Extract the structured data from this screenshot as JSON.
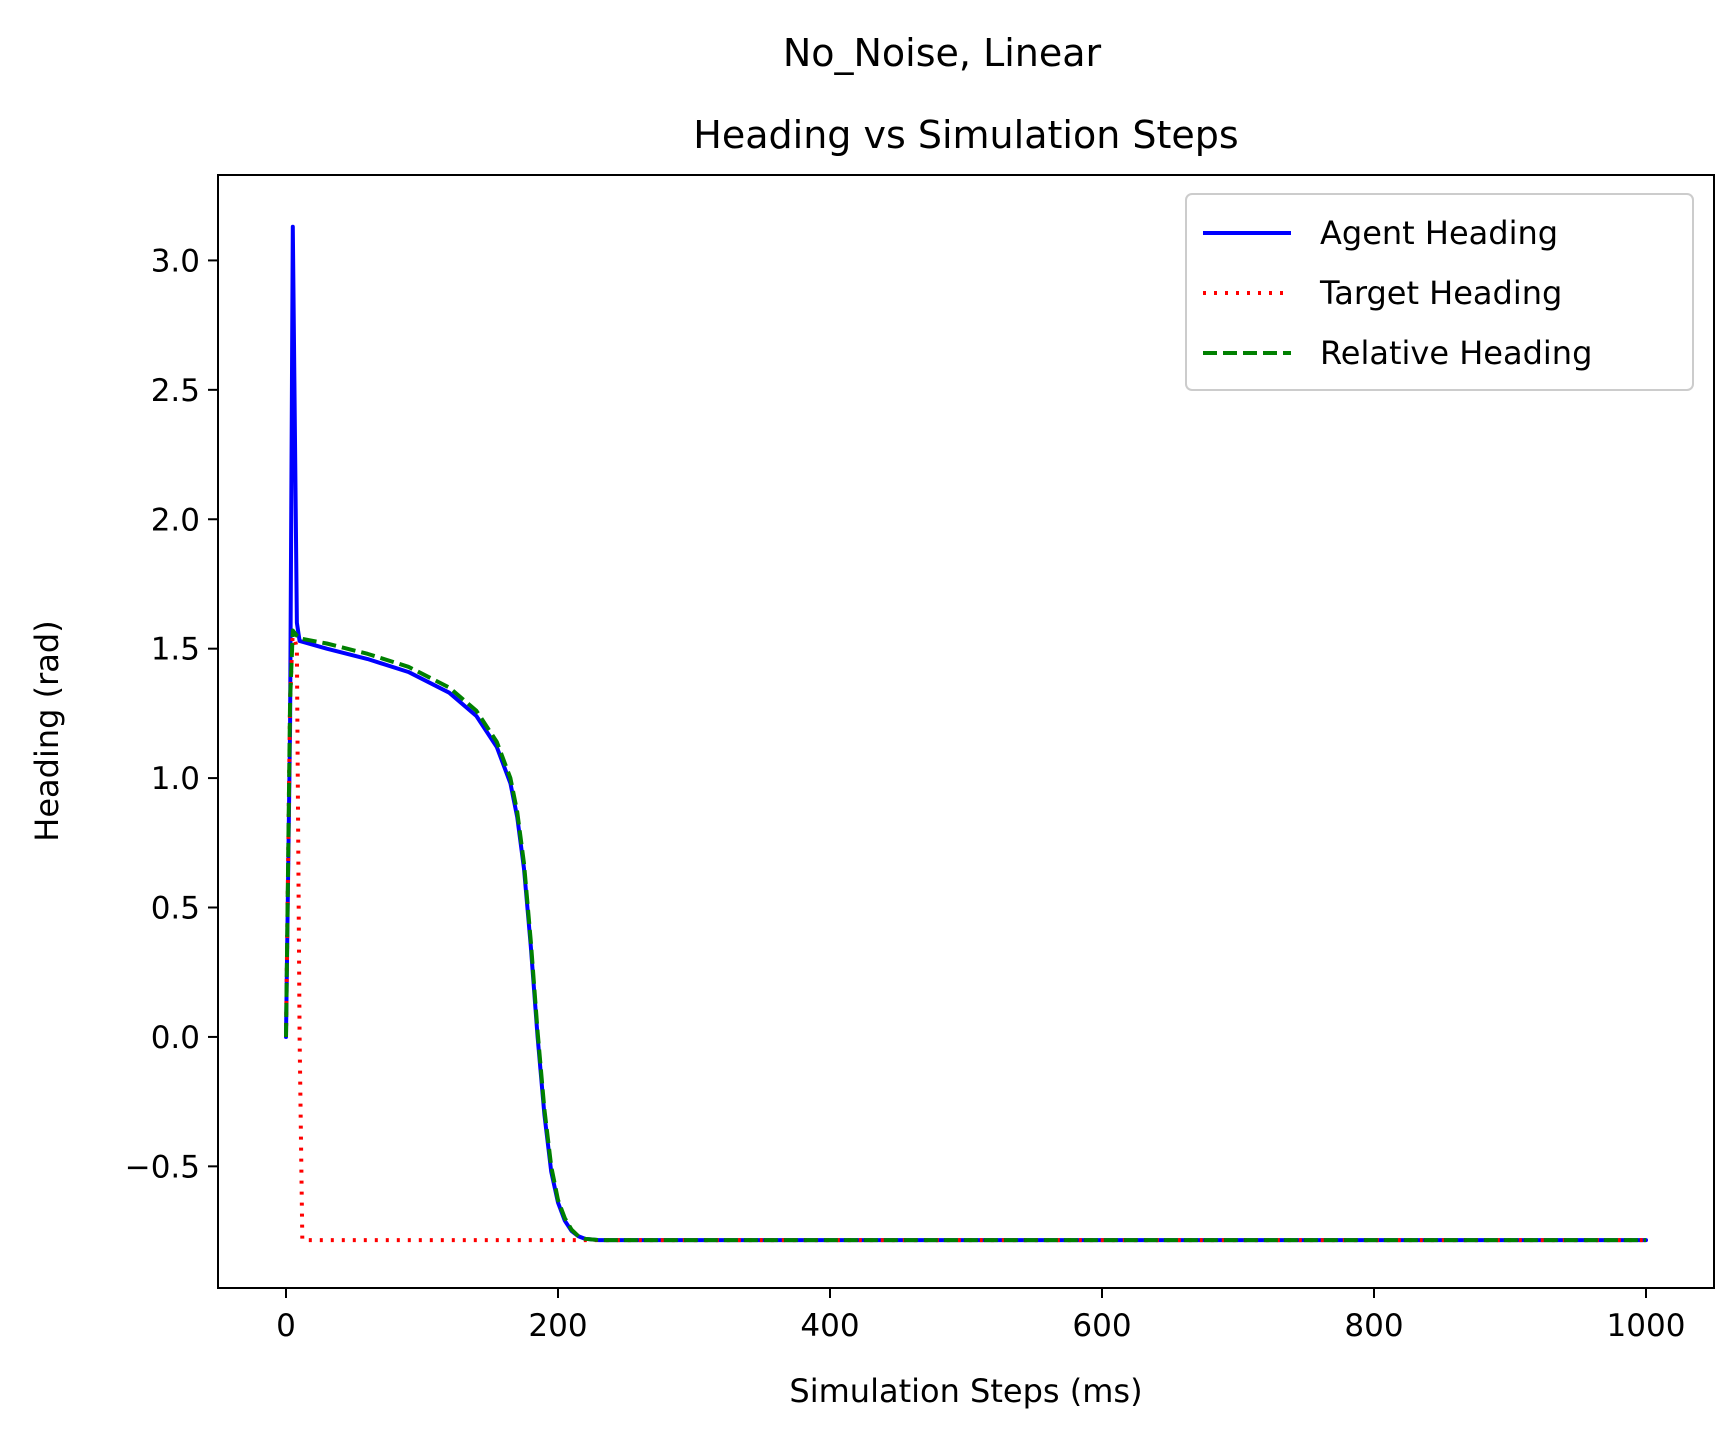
{
  "chart_data": {
    "type": "line",
    "suptitle": "No_Noise, Linear",
    "title": "Heading vs Simulation Steps",
    "xlabel": "Simulation Steps (ms)",
    "ylabel": "Heading (rad)",
    "xlim": [
      -50,
      1050
    ],
    "ylim": [
      -0.97,
      3.33
    ],
    "xticks": [
      {
        "value": 0,
        "label": "0"
      },
      {
        "value": 200,
        "label": "200"
      },
      {
        "value": 400,
        "label": "400"
      },
      {
        "value": 600,
        "label": "600"
      },
      {
        "value": 800,
        "label": "800"
      },
      {
        "value": 1000,
        "label": "1000"
      }
    ],
    "yticks": [
      {
        "value": -0.5,
        "label": "−0.5"
      },
      {
        "value": 0.0,
        "label": "0.0"
      },
      {
        "value": 0.5,
        "label": "0.5"
      },
      {
        "value": 1.0,
        "label": "1.0"
      },
      {
        "value": 1.5,
        "label": "1.5"
      },
      {
        "value": 2.0,
        "label": "2.0"
      },
      {
        "value": 2.5,
        "label": "2.5"
      },
      {
        "value": 3.0,
        "label": "3.0"
      }
    ],
    "grid": false,
    "legend_position": "top-right",
    "series": [
      {
        "name": "Agent Heading",
        "color": "#0000ff",
        "style": "solid",
        "x": [
          0,
          3,
          5,
          8,
          10,
          30,
          60,
          90,
          120,
          140,
          155,
          165,
          170,
          175,
          180,
          185,
          190,
          195,
          200,
          205,
          210,
          215,
          220,
          230,
          240,
          260,
          300,
          400,
          600,
          800,
          1000
        ],
        "y": [
          0.0,
          1.2,
          3.13,
          1.6,
          1.53,
          1.5,
          1.46,
          1.41,
          1.33,
          1.24,
          1.12,
          0.98,
          0.85,
          0.65,
          0.35,
          0.0,
          -0.3,
          -0.52,
          -0.64,
          -0.71,
          -0.75,
          -0.77,
          -0.78,
          -0.785,
          -0.785,
          -0.785,
          -0.785,
          -0.785,
          -0.785,
          -0.785,
          -0.785
        ]
      },
      {
        "name": "Target Heading",
        "color": "#ff0000",
        "style": "dotted",
        "x": [
          0,
          3,
          5,
          8,
          10,
          12,
          100,
          200,
          220,
          240,
          400,
          600,
          800,
          1000
        ],
        "y": [
          0.0,
          1.3,
          1.57,
          1.5,
          0.0,
          -0.785,
          -0.785,
          -0.785,
          -0.785,
          -0.785,
          -0.785,
          -0.785,
          -0.785,
          -0.785
        ]
      },
      {
        "name": "Relative Heading",
        "color": "#008000",
        "style": "dashed",
        "x": [
          0,
          3,
          5,
          8,
          10,
          30,
          60,
          90,
          120,
          140,
          155,
          165,
          170,
          175,
          180,
          185,
          190,
          195,
          200,
          205,
          210,
          215,
          220,
          230,
          240,
          260,
          300,
          400,
          600,
          800,
          1000
        ],
        "y": [
          0.0,
          1.3,
          1.57,
          1.55,
          1.54,
          1.52,
          1.48,
          1.43,
          1.35,
          1.26,
          1.14,
          1.0,
          0.87,
          0.67,
          0.37,
          0.02,
          -0.28,
          -0.5,
          -0.63,
          -0.7,
          -0.745,
          -0.77,
          -0.78,
          -0.785,
          -0.785,
          -0.785,
          -0.785,
          -0.785,
          -0.785,
          -0.785,
          -0.785
        ]
      }
    ]
  }
}
